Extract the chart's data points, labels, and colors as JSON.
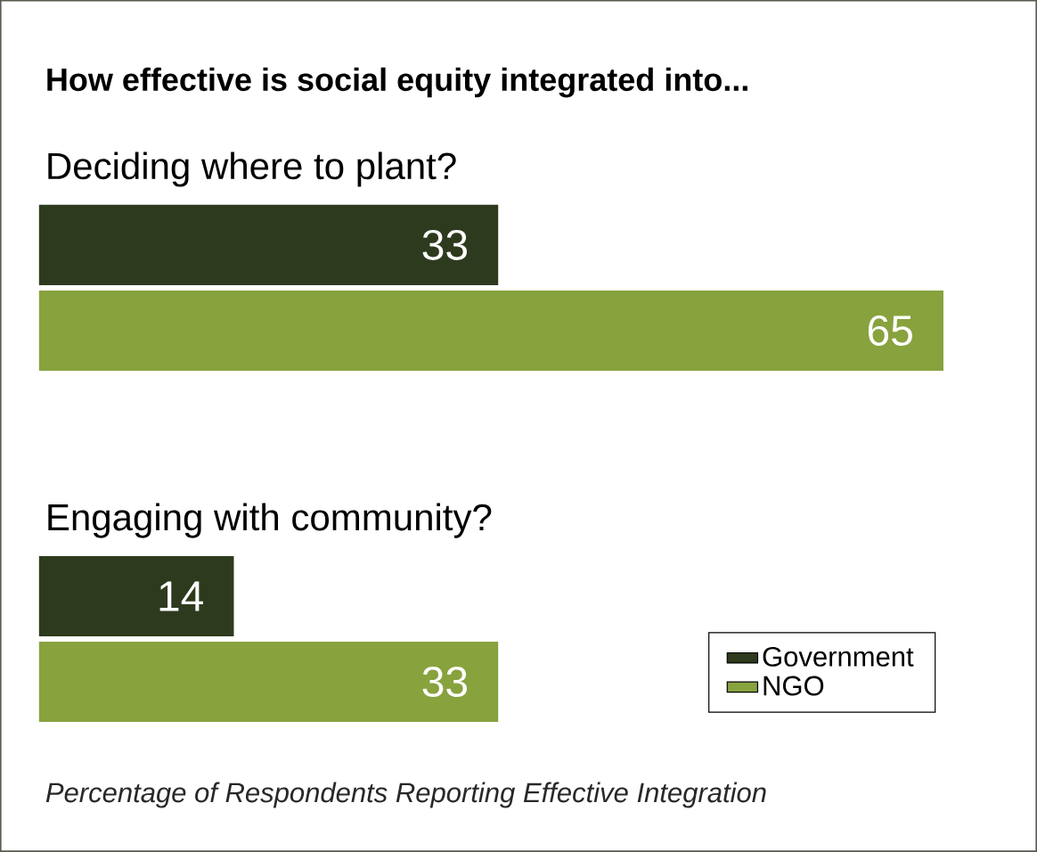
{
  "chart_data": {
    "type": "bar",
    "orientation": "horizontal",
    "title": "How effective is social equity integrated into...",
    "categories": [
      "Deciding where to plant?",
      "Engaging with community?"
    ],
    "series": [
      {
        "name": "Government",
        "color": "#2e3a1d",
        "values": [
          33,
          14
        ]
      },
      {
        "name": "NGO",
        "color": "#88a23e",
        "values": [
          65,
          33
        ]
      }
    ],
    "data_labels": true,
    "legend": "bottom right",
    "annotations": [
      "Percentage of Respondents Reporting Effective Integration"
    ]
  }
}
